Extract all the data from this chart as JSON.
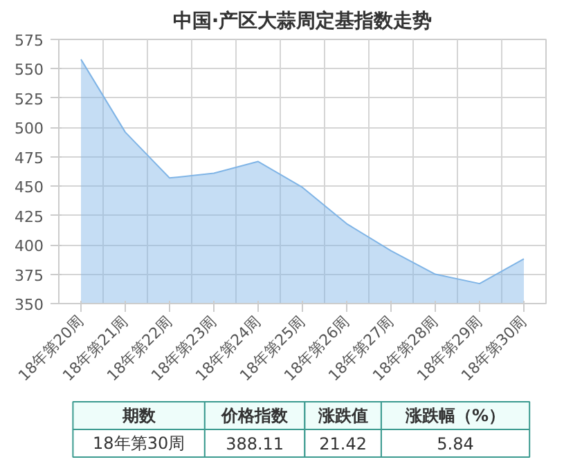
{
  "chart_data": {
    "type": "area",
    "title": "中国·产区大蒜周定基指数走势",
    "categories": [
      "18年第20周",
      "18年第21周",
      "18年第22周",
      "18年第23周",
      "18年第24周",
      "18年第25周",
      "18年第26周",
      "18年第27周",
      "18年第28周",
      "18年第29周",
      "18年第30周"
    ],
    "values": [
      558,
      496,
      457,
      461,
      471,
      449,
      418,
      395,
      375,
      367,
      388.11
    ],
    "color": "#7fb4e6",
    "ylim": [
      350,
      575
    ],
    "yticks": [
      350,
      375,
      400,
      425,
      450,
      475,
      500,
      525,
      550,
      575
    ],
    "grid": true,
    "annotations": [
      "期数",
      "价格指数",
      "涨跌值",
      "涨跌幅（%）",
      "18年第30周",
      "388.11",
      "21.42",
      "5.84"
    ]
  }
}
